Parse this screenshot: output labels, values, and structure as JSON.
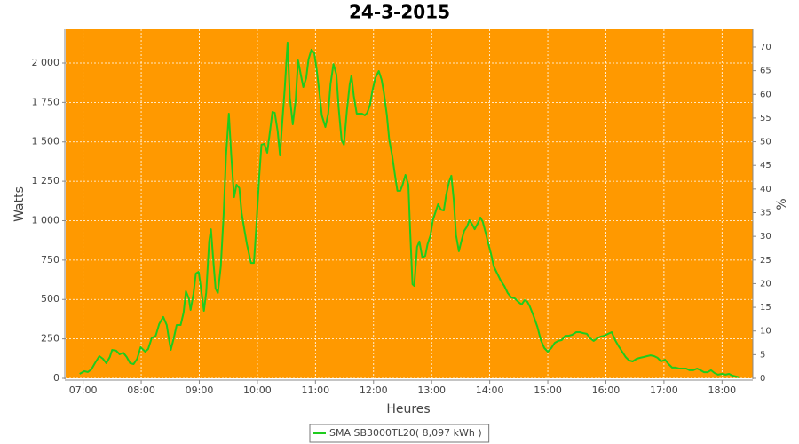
{
  "chart_data": {
    "type": "line",
    "title": "24-3-2015",
    "x_label": "Heures",
    "y_label": "Watts",
    "y2_label": "%",
    "background": "#ff9900",
    "grid": true,
    "xlim": [
      6.7,
      18.53
    ],
    "xticks": [
      {
        "value": 7,
        "label": "07:00"
      },
      {
        "value": 8,
        "label": "08:00"
      },
      {
        "value": 9,
        "label": "09:00"
      },
      {
        "value": 10,
        "label": "10:00"
      },
      {
        "value": 11,
        "label": "11:00"
      },
      {
        "value": 12,
        "label": "12:00"
      },
      {
        "value": 13,
        "label": "13:00"
      },
      {
        "value": 14,
        "label": "14:00"
      },
      {
        "value": 15,
        "label": "15:00"
      },
      {
        "value": 16,
        "label": "16:00"
      },
      {
        "value": 17,
        "label": "17:00"
      },
      {
        "value": 18,
        "label": "18:00"
      }
    ],
    "ylim": [
      0,
      2214
    ],
    "yticks": [
      0,
      250,
      500,
      750,
      {
        "value": 1000,
        "label": "1 000"
      },
      {
        "value": 1250,
        "label": "1 250"
      },
      {
        "value": 1500,
        "label": "1 500"
      },
      {
        "value": 1750,
        "label": "1 750"
      },
      {
        "value": 2000,
        "label": "2 000"
      }
    ],
    "y2lim": [
      0,
      73.75
    ],
    "y2ticks": [
      0,
      5,
      10,
      15,
      20,
      25,
      30,
      35,
      40,
      45,
      50,
      55,
      60,
      65,
      70
    ],
    "x": [
      6.94,
      7.02,
      7.08,
      7.14,
      7.21,
      7.28,
      7.34,
      7.4,
      7.46,
      7.5,
      7.57,
      7.63,
      7.69,
      7.75,
      7.81,
      7.87,
      7.93,
      7.99,
      8.07,
      8.12,
      8.18,
      8.25,
      8.31,
      8.38,
      8.44,
      8.48,
      8.51,
      8.56,
      8.61,
      8.68,
      8.73,
      8.77,
      8.82,
      8.85,
      8.9,
      8.94,
      8.99,
      9.03,
      9.08,
      9.12,
      9.17,
      9.2,
      9.25,
      9.28,
      9.32,
      9.37,
      9.42,
      9.46,
      9.51,
      9.55,
      9.6,
      9.64,
      9.69,
      9.73,
      9.78,
      9.82,
      9.89,
      9.94,
      9.98,
      10.03,
      10.07,
      10.12,
      10.17,
      10.21,
      10.26,
      10.3,
      10.35,
      10.39,
      10.42,
      10.47,
      10.52,
      10.56,
      10.61,
      10.66,
      10.7,
      10.75,
      10.79,
      10.84,
      10.88,
      10.93,
      10.98,
      11.02,
      11.07,
      11.11,
      11.17,
      11.22,
      11.26,
      11.31,
      11.36,
      11.4,
      11.45,
      11.49,
      11.54,
      11.59,
      11.62,
      11.66,
      11.71,
      11.76,
      11.8,
      11.85,
      11.89,
      11.94,
      11.98,
      12.03,
      12.09,
      12.14,
      12.18,
      12.23,
      12.27,
      12.32,
      12.37,
      12.41,
      12.46,
      12.5,
      12.55,
      12.6,
      12.63,
      12.67,
      12.7,
      12.75,
      12.79,
      12.84,
      12.89,
      12.93,
      12.98,
      13.02,
      13.07,
      13.11,
      13.16,
      13.21,
      13.25,
      13.3,
      13.34,
      13.38,
      13.42,
      13.47,
      13.51,
      13.56,
      13.61,
      13.65,
      13.7,
      13.74,
      13.79,
      13.84,
      13.88,
      13.93,
      13.97,
      14.02,
      14.07,
      14.13,
      14.19,
      14.25,
      14.31,
      14.37,
      14.43,
      14.49,
      14.55,
      14.6,
      14.65,
      14.69,
      14.75,
      14.82,
      14.88,
      14.94,
      15.0,
      15.06,
      15.12,
      15.18,
      15.24,
      15.3,
      15.36,
      15.42,
      15.49,
      15.55,
      15.61,
      15.67,
      15.73,
      15.79,
      15.85,
      15.91,
      15.97,
      16.04,
      16.1,
      16.16,
      16.22,
      16.28,
      16.34,
      16.4,
      16.46,
      16.53,
      16.59,
      16.65,
      16.71,
      16.77,
      16.83,
      16.89,
      16.95,
      17.02,
      17.08,
      17.14,
      17.2,
      17.26,
      17.32,
      17.38,
      17.44,
      17.5,
      17.57,
      17.63,
      17.69,
      17.75,
      17.81,
      17.87,
      17.93,
      18.0,
      18.06,
      18.12,
      18.18,
      18.24,
      18.29
    ],
    "series": [
      {
        "name": "SMA SB3000TL20( 8,097 kWh )",
        "color": "#1ecc1e",
        "values": [
          28,
          45,
          40,
          56,
          101,
          141,
          124,
          96,
          135,
          180,
          175,
          152,
          163,
          135,
          96,
          90,
          124,
          197,
          169,
          186,
          254,
          270,
          344,
          389,
          338,
          242,
          180,
          254,
          338,
          338,
          417,
          552,
          507,
          434,
          535,
          665,
          676,
          569,
          428,
          546,
          868,
          946,
          710,
          569,
          541,
          710,
          1048,
          1414,
          1679,
          1414,
          1149,
          1228,
          1206,
          1048,
          935,
          851,
          732,
          732,
          952,
          1273,
          1482,
          1487,
          1431,
          1544,
          1690,
          1684,
          1566,
          1414,
          1583,
          1837,
          2130,
          1780,
          1611,
          1769,
          2017,
          1921,
          1848,
          1904,
          2023,
          2085,
          2063,
          1961,
          1808,
          1668,
          1594,
          1679,
          1865,
          1994,
          1927,
          1713,
          1510,
          1482,
          1696,
          1865,
          1921,
          1792,
          1679,
          1679,
          1679,
          1668,
          1684,
          1735,
          1825,
          1904,
          1949,
          1893,
          1808,
          1668,
          1515,
          1414,
          1285,
          1189,
          1189,
          1228,
          1290,
          1228,
          935,
          597,
          586,
          834,
          868,
          766,
          777,
          851,
          907,
          1003,
          1059,
          1104,
          1070,
          1065,
          1161,
          1245,
          1285,
          1132,
          907,
          806,
          868,
          935,
          963,
          1003,
          975,
          946,
          980,
          1020,
          992,
          924,
          862,
          794,
          710,
          665,
          620,
          586,
          541,
          513,
          507,
          485,
          468,
          496,
          485,
          456,
          400,
          327,
          242,
          192,
          169,
          192,
          225,
          237,
          242,
          270,
          270,
          276,
          293,
          293,
          287,
          282,
          254,
          237,
          254,
          265,
          270,
          282,
          293,
          242,
          203,
          169,
          135,
          113,
          107,
          124,
          130,
          135,
          141,
          146,
          141,
          130,
          107,
          118,
          90,
          68,
          68,
          62,
          62,
          62,
          51,
          51,
          62,
          51,
          39,
          39,
          51,
          34,
          23,
          28,
          23,
          28,
          17,
          11,
          6
        ]
      }
    ]
  }
}
